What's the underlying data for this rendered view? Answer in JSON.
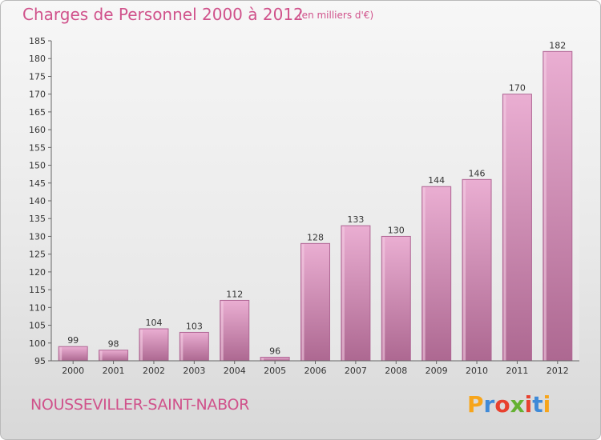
{
  "header": {
    "title": "Charges de Personnel 2000 à 2012",
    "subtitle": "(en milliers d'€)"
  },
  "footer": {
    "commune": "NOUSSEVILLER-SAINT-NABOR",
    "logo_letters": [
      "P",
      "r",
      "o",
      "x",
      "i",
      "t",
      "i"
    ],
    "logo_colors": [
      "#f7a51b",
      "#3f8ad8",
      "#e8412f",
      "#65b132",
      "#e8412f",
      "#3f8ad8",
      "#f7a51b"
    ]
  },
  "chart_data": {
    "type": "bar",
    "categories": [
      "2000",
      "2001",
      "2002",
      "2003",
      "2004",
      "2005",
      "2006",
      "2007",
      "2008",
      "2009",
      "2010",
      "2011",
      "2012"
    ],
    "values": [
      99,
      98,
      104,
      103,
      112,
      96,
      128,
      133,
      130,
      144,
      146,
      170,
      182
    ],
    "ylim": [
      95,
      185
    ],
    "yticks": [
      95,
      100,
      105,
      110,
      115,
      120,
      125,
      130,
      135,
      140,
      145,
      150,
      155,
      160,
      165,
      170,
      175,
      180,
      185
    ],
    "grid": false,
    "legend": "none",
    "colors": {
      "bar_top": "#e9a9cf",
      "bar_bottom": "#b06a94",
      "bar_side": "#b06795",
      "text": "#333333",
      "axis": "#666666"
    }
  }
}
